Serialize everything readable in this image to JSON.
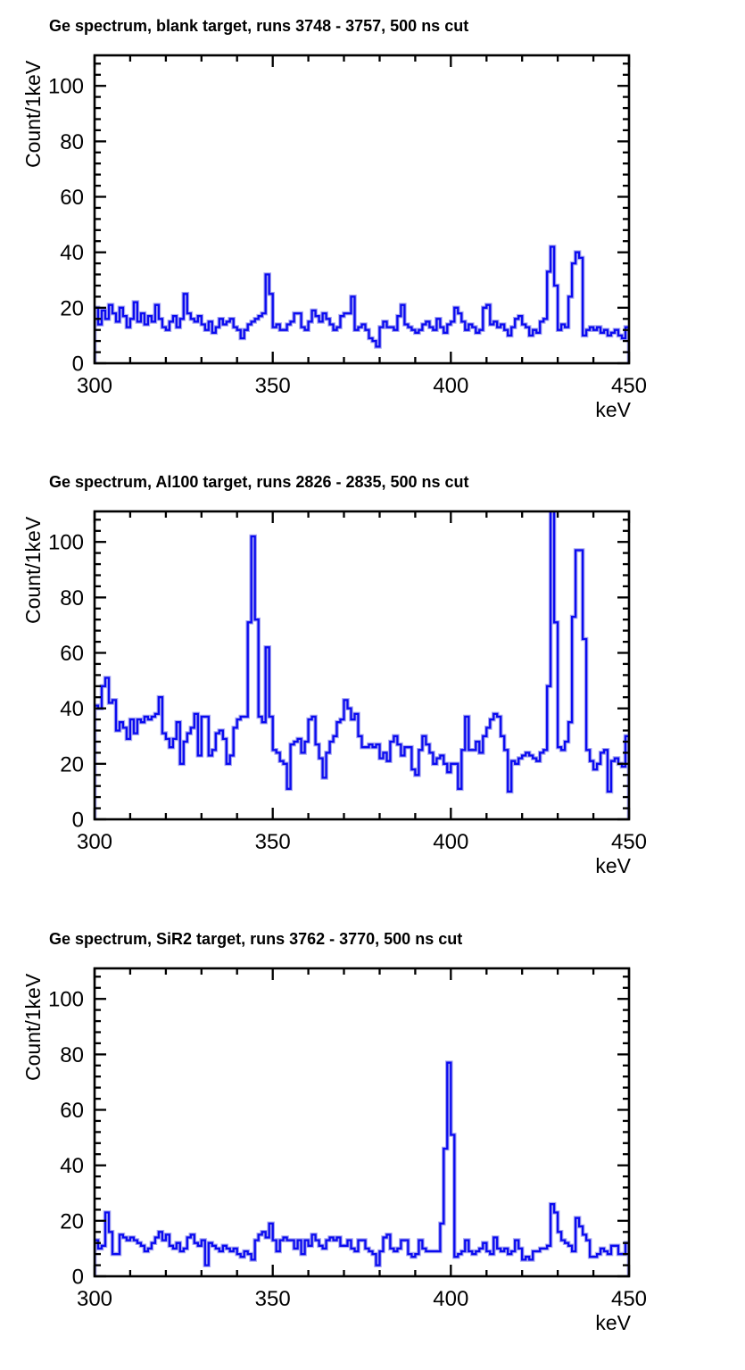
{
  "page": {
    "background": "#ffffff",
    "axis_color": "#000000"
  },
  "chart_data": [
    {
      "type": "bar",
      "subtype": "histogram-step",
      "title": "Ge spectrum, blank target, runs 3748 - 3757, 500 ns cut",
      "xlabel": "keV",
      "ylabel": "Count/1keV",
      "xlim": [
        300,
        450
      ],
      "ylim": [
        0,
        111
      ],
      "bin_width": 1,
      "x_major_ticks": [
        300,
        350,
        400,
        450
      ],
      "x_minor_step": 10,
      "y_major_ticks": [
        0,
        20,
        40,
        60,
        80,
        100
      ],
      "y_minor_step": 4,
      "line_color": "#0a0af0",
      "halo_color": "#a8a8f0",
      "grid": false,
      "legend": "none",
      "values": [
        20,
        14,
        19,
        16,
        21,
        18,
        15,
        20,
        17,
        13,
        16,
        22,
        15,
        18,
        14,
        17,
        15,
        21,
        16,
        13,
        12,
        15,
        17,
        13,
        16,
        25,
        18,
        16,
        15,
        17,
        14,
        12,
        15,
        11,
        13,
        16,
        14,
        15,
        16,
        13,
        12,
        9,
        12,
        14,
        15,
        16,
        17,
        18,
        32,
        25,
        13,
        14,
        12,
        12,
        14,
        15,
        18,
        18,
        13,
        12,
        15,
        19,
        17,
        15,
        18,
        16,
        14,
        12,
        13,
        17,
        18,
        18,
        24,
        12,
        13,
        14,
        12,
        9,
        8,
        6,
        13,
        15,
        13,
        13,
        12,
        17,
        21,
        14,
        13,
        12,
        11,
        12,
        14,
        15,
        13,
        12,
        16,
        13,
        11,
        14,
        15,
        20,
        18,
        15,
        12,
        14,
        13,
        11,
        12,
        20,
        21,
        14,
        15,
        13,
        14,
        12,
        10,
        13,
        16,
        17,
        14,
        13,
        10,
        12,
        11,
        15,
        16,
        33,
        42,
        28,
        12,
        14,
        13,
        24,
        36,
        40,
        38,
        10,
        12,
        13,
        12,
        13,
        11,
        12,
        10,
        11,
        12,
        10,
        9,
        13
      ]
    },
    {
      "type": "bar",
      "subtype": "histogram-step",
      "title": "Ge spectrum, Al100 target, runs 2826 - 2835, 500 ns cut",
      "xlabel": "keV",
      "ylabel": "Count/1keV",
      "xlim": [
        300,
        450
      ],
      "ylim": [
        0,
        111
      ],
      "bin_width": 1,
      "x_major_ticks": [
        300,
        350,
        400,
        450
      ],
      "x_minor_step": 10,
      "y_major_ticks": [
        0,
        20,
        40,
        60,
        80,
        100
      ],
      "y_minor_step": 4,
      "line_color": "#0a0af0",
      "halo_color": "#a8a8f0",
      "grid": false,
      "legend": "none",
      "values": [
        41,
        40,
        48,
        51,
        42,
        43,
        32,
        35,
        33,
        29,
        36,
        31,
        36,
        35,
        37,
        36,
        37,
        38,
        44,
        31,
        29,
        26,
        29,
        35,
        20,
        28,
        31,
        33,
        38,
        23,
        37,
        37,
        23,
        25,
        31,
        32,
        29,
        20,
        23,
        33,
        36,
        37,
        37,
        71,
        102,
        72,
        37,
        35,
        62,
        37,
        25,
        24,
        21,
        20,
        11,
        27,
        28,
        29,
        24,
        28,
        36,
        37,
        27,
        22,
        15,
        24,
        28,
        30,
        35,
        36,
        43,
        40,
        36,
        38,
        30,
        26,
        26,
        27,
        26,
        27,
        22,
        24,
        21,
        28,
        30,
        27,
        23,
        26,
        26,
        18,
        16,
        25,
        30,
        27,
        24,
        20,
        22,
        23,
        20,
        17,
        20,
        20,
        11,
        25,
        37,
        25,
        25,
        28,
        24,
        30,
        33,
        36,
        38,
        37,
        30,
        25,
        10,
        21,
        20,
        22,
        23,
        24,
        23,
        22,
        21,
        24,
        25,
        48,
        112,
        71,
        26,
        25,
        28,
        35,
        73,
        97,
        97,
        65,
        25,
        21,
        18,
        20,
        24,
        25,
        10,
        21,
        22,
        20,
        19,
        30
      ]
    },
    {
      "type": "bar",
      "subtype": "histogram-step",
      "title": "Ge spectrum, SiR2 target, runs 3762 - 3770, 500 ns cut",
      "xlabel": "keV",
      "ylabel": "Count/1keV",
      "xlim": [
        300,
        450
      ],
      "ylim": [
        0,
        111
      ],
      "bin_width": 1,
      "x_major_ticks": [
        300,
        350,
        400,
        450
      ],
      "x_minor_step": 10,
      "y_major_ticks": [
        0,
        20,
        40,
        60,
        80,
        100
      ],
      "y_minor_step": 4,
      "line_color": "#0a0af0",
      "halo_color": "#a8a8f0",
      "grid": false,
      "legend": "none",
      "values": [
        13,
        10,
        11,
        23,
        16,
        8,
        8,
        15,
        14,
        13,
        14,
        13,
        12,
        11,
        9,
        10,
        12,
        14,
        16,
        13,
        15,
        11,
        10,
        12,
        9,
        10,
        14,
        15,
        12,
        11,
        13,
        4,
        12,
        11,
        10,
        9,
        11,
        10,
        9,
        10,
        8,
        7,
        9,
        8,
        6,
        13,
        15,
        16,
        14,
        19,
        13,
        9,
        13,
        14,
        13,
        13,
        10,
        13,
        8,
        13,
        11,
        15,
        13,
        11,
        10,
        13,
        14,
        13,
        14,
        11,
        11,
        13,
        10,
        9,
        13,
        13,
        10,
        9,
        8,
        4,
        9,
        14,
        15,
        10,
        9,
        10,
        13,
        13,
        8,
        7,
        8,
        13,
        10,
        9,
        9,
        9,
        9,
        19,
        46,
        77,
        51,
        7,
        8,
        9,
        13,
        9,
        8,
        9,
        10,
        12,
        9,
        8,
        14,
        10,
        9,
        10,
        8,
        9,
        13,
        10,
        6,
        7,
        6,
        9,
        9,
        10,
        10,
        11,
        26,
        23,
        16,
        13,
        12,
        11,
        9,
        21,
        18,
        15,
        13,
        7,
        7,
        8,
        10,
        9,
        8,
        11,
        11,
        8,
        8,
        12
      ]
    }
  ]
}
